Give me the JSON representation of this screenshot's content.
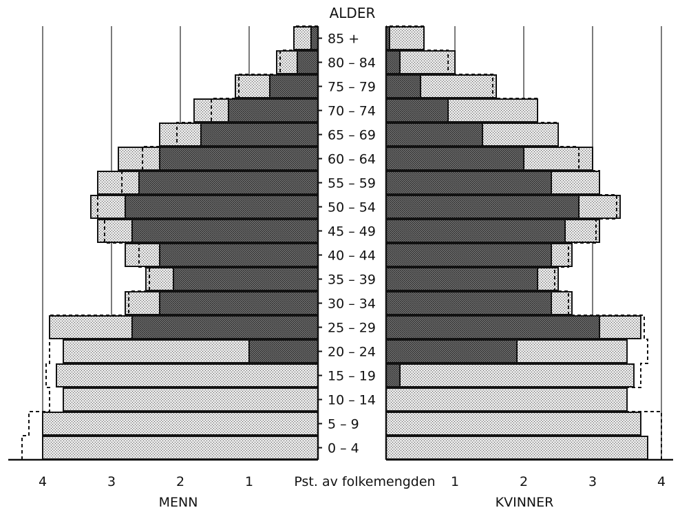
{
  "chart_data": {
    "type": "bar",
    "title": "ALDER",
    "xlabel": "Pst. av folkemengden",
    "left_label": "MENN",
    "right_label": "KVINNER",
    "xlim": [
      0,
      4
    ],
    "x_ticks": [
      "1",
      "2",
      "3",
      "4"
    ],
    "categories": [
      "0 – 4",
      "5 – 9",
      "10 – 14",
      "15 – 19",
      "20 – 24",
      "25 – 29",
      "30 – 34",
      "35 – 39",
      "40 – 44",
      "45 – 49",
      "50 – 54",
      "55 – 59",
      "60 – 64",
      "65 – 69",
      "70 – 74",
      "75 – 79",
      "80 – 84",
      "85 +"
    ],
    "men": {
      "total": [
        4.0,
        4.0,
        3.7,
        3.8,
        3.7,
        3.9,
        2.8,
        2.5,
        2.8,
        3.2,
        3.3,
        3.2,
        2.9,
        2.3,
        1.8,
        1.2,
        0.6,
        0.35
      ],
      "dark": [
        0,
        0,
        0,
        0,
        1.0,
        2.7,
        2.3,
        2.1,
        2.3,
        2.7,
        2.8,
        2.6,
        2.3,
        1.7,
        1.3,
        0.7,
        0.3,
        0.1
      ],
      "dashed": [
        4.3,
        4.2,
        3.9,
        3.95,
        3.9,
        3.9,
        2.75,
        2.45,
        2.6,
        3.1,
        3.2,
        2.85,
        2.55,
        2.05,
        1.55,
        1.15,
        0.55,
        0.35
      ]
    },
    "women": {
      "total": [
        3.8,
        3.7,
        3.5,
        3.6,
        3.5,
        3.7,
        2.7,
        2.5,
        2.7,
        3.1,
        3.4,
        3.1,
        3.0,
        2.5,
        2.2,
        1.6,
        1.0,
        0.55
      ],
      "dark": [
        0,
        0,
        0,
        0.2,
        1.9,
        3.1,
        2.4,
        2.2,
        2.4,
        2.6,
        2.8,
        2.4,
        2.0,
        1.4,
        0.9,
        0.5,
        0.2,
        0.05
      ],
      "dashed": [
        4.0,
        4.0,
        3.5,
        3.7,
        3.8,
        3.75,
        2.65,
        2.45,
        2.65,
        3.05,
        3.35,
        3.1,
        2.8,
        2.5,
        2.2,
        1.55,
        0.9,
        0.55
      ]
    }
  }
}
